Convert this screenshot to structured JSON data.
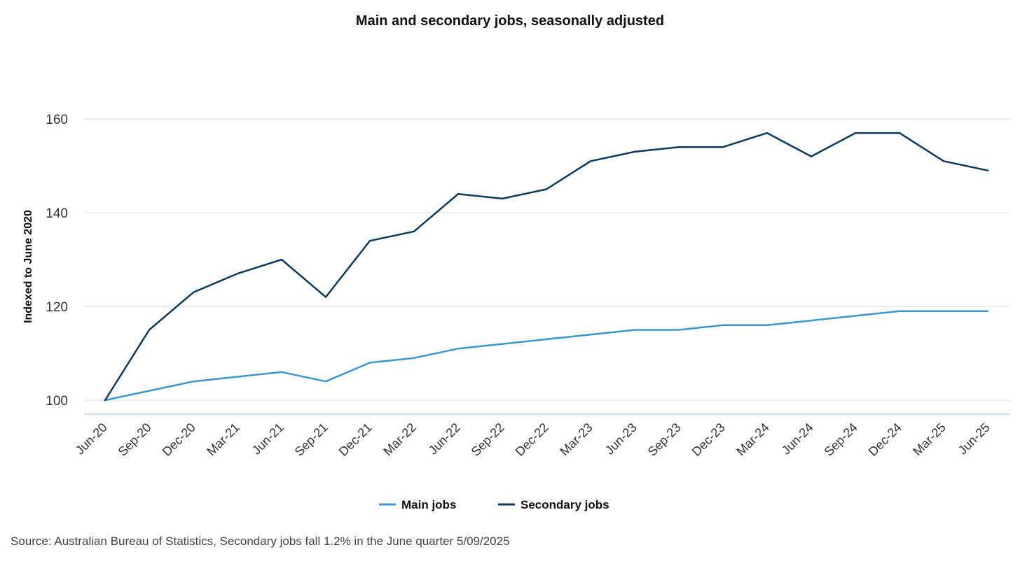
{
  "chart_data": {
    "type": "line",
    "title": "Main and secondary jobs, seasonally adjusted",
    "xlabel": "",
    "ylabel": "Indexed to June 2020",
    "ylim": [
      100,
      160
    ],
    "yticks": [
      100,
      120,
      140,
      160
    ],
    "grid": true,
    "legend_position": "bottom-center",
    "categories": [
      "Jun-20",
      "Sep-20",
      "Dec-20",
      "Mar-21",
      "Jun-21",
      "Sep-21",
      "Dec-21",
      "Mar-22",
      "Jun-22",
      "Sep-22",
      "Dec-22",
      "Mar-23",
      "Jun-23",
      "Sep-23",
      "Dec-23",
      "Mar-24",
      "Jun-24",
      "Sep-24",
      "Dec-24",
      "Mar-25",
      "Jun-25"
    ],
    "series": [
      {
        "name": "Main jobs",
        "color": "#3a96cc",
        "values": [
          100,
          102,
          104,
          105,
          106,
          104,
          108,
          109,
          111,
          112,
          113,
          114,
          115,
          115,
          116,
          116,
          117,
          118,
          119,
          119,
          119
        ]
      },
      {
        "name": "Secondary jobs",
        "color": "#0b3a5e",
        "values": [
          100,
          115,
          123,
          127,
          130,
          122,
          134,
          136,
          144,
          143,
          145,
          151,
          153,
          154,
          154,
          157,
          152,
          157,
          157,
          151,
          149
        ]
      }
    ],
    "source": "Source: Australian Bureau of Statistics, Secondary jobs fall 1.2% in the June quarter 5/09/2025"
  }
}
